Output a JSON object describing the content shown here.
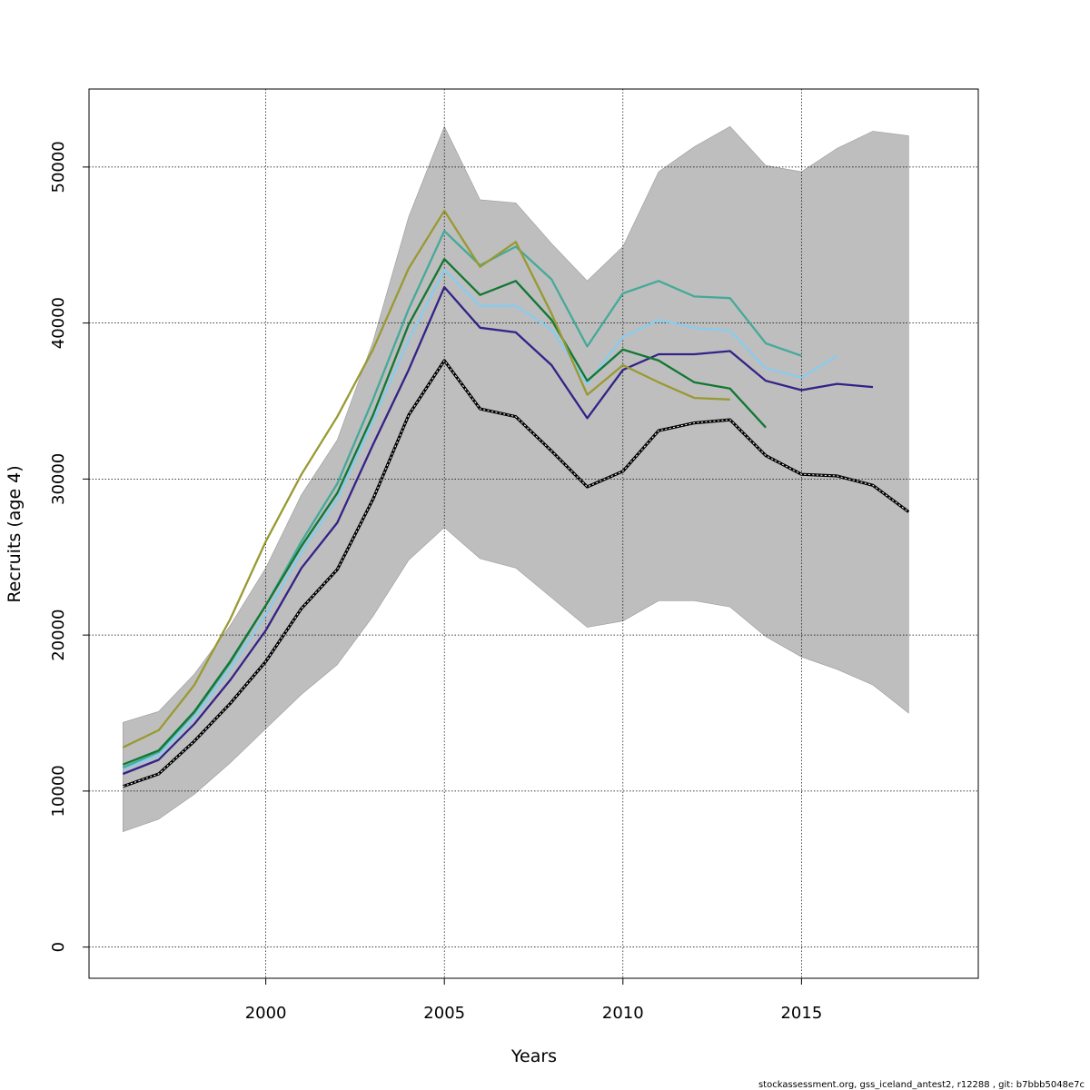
{
  "chart_data": {
    "type": "line",
    "title": "",
    "xlabel": "Years",
    "ylabel": "Recruits (age 4)",
    "footer": "stockassessment.org, gss_iceland_antest2, r12288 , git: b7bbb5048e7c",
    "xlim": [
      1995.05,
      2019.95
    ],
    "ylim": [
      -2000,
      55000
    ],
    "xticks": [
      2000,
      2005,
      2010,
      2015
    ],
    "yticks": [
      0,
      10000,
      20000,
      30000,
      40000,
      50000
    ],
    "grid": true,
    "band": {
      "x": [
        1996,
        1997,
        1998,
        1999,
        2000,
        2001,
        2002,
        2003,
        2004,
        2005,
        2006,
        2007,
        2008,
        2009,
        2010,
        2011,
        2012,
        2013,
        2014,
        2015,
        2016,
        2017,
        2018
      ],
      "lower": [
        7400,
        8200,
        9800,
        11800,
        14000,
        16200,
        18100,
        21200,
        24800,
        26900,
        24900,
        24300,
        22400,
        20500,
        20900,
        22200,
        22200,
        21800,
        19900,
        18600,
        17800,
        16800,
        15000
      ],
      "upper": [
        14400,
        15100,
        17500,
        20600,
        24300,
        29000,
        32500,
        38800,
        46800,
        52600,
        47900,
        47700,
        45100,
        42700,
        44900,
        49700,
        51300,
        52600,
        50100,
        49700,
        51200,
        52300,
        52000
      ],
      "color": "#bebebe"
    },
    "series": [
      {
        "color": "#ffffff",
        "dashed": true,
        "x": [
          1996,
          1997,
          1998,
          1999,
          2000,
          2001,
          2002,
          2003,
          2004,
          2005,
          2006,
          2007,
          2008,
          2009,
          2010,
          2011,
          2012,
          2013,
          2014,
          2015,
          2016,
          2017,
          2018
        ],
        "values": [
          10300,
          11100,
          13200,
          15600,
          18300,
          21700,
          24200,
          28700,
          34100,
          37600,
          34500,
          34000,
          31800,
          29500,
          30500,
          33100,
          33600,
          33800,
          31500,
          30300,
          30200,
          29600,
          27900
        ]
      },
      {
        "color": "#332288",
        "x": [
          1996,
          1997,
          1998,
          1999,
          2000,
          2001,
          2002,
          2003,
          2004,
          2005,
          2006,
          2007,
          2008,
          2009,
          2010,
          2011,
          2012,
          2013,
          2014,
          2015,
          2016,
          2017
        ],
        "values": [
          11100,
          12000,
          14300,
          17100,
          20300,
          24300,
          27200,
          32200,
          37000,
          42300,
          39700,
          39400,
          37300,
          33900,
          37000,
          38000,
          38000,
          38200,
          36300,
          35700,
          36100,
          35900
        ]
      },
      {
        "color": "#88ccee",
        "x": [
          1996,
          1997,
          1998,
          1999,
          2000,
          2001,
          2002,
          2003,
          2004,
          2005,
          2006,
          2007,
          2008,
          2009,
          2010,
          2011,
          2012,
          2013,
          2014,
          2015,
          2016
        ],
        "values": [
          11400,
          12300,
          14700,
          17800,
          21300,
          25300,
          28700,
          33700,
          38900,
          43400,
          41100,
          41100,
          39600,
          36100,
          39100,
          40200,
          39700,
          39500,
          37100,
          36500,
          37900
        ]
      },
      {
        "color": "#44aa99",
        "x": [
          1996,
          1997,
          1998,
          1999,
          2000,
          2001,
          2002,
          2003,
          2004,
          2005,
          2006,
          2007,
          2008,
          2009,
          2010,
          2011,
          2012,
          2013,
          2014,
          2015
        ],
        "values": [
          11500,
          12500,
          15000,
          18200,
          21900,
          26000,
          29700,
          35100,
          40900,
          45900,
          43700,
          44900,
          42800,
          38500,
          41900,
          42700,
          41700,
          41600,
          38700,
          37900
        ]
      },
      {
        "color": "#117733",
        "x": [
          1996,
          1997,
          1998,
          1999,
          2000,
          2001,
          2002,
          2003,
          2004,
          2005,
          2006,
          2007,
          2008,
          2009,
          2010,
          2011,
          2012,
          2013,
          2014
        ],
        "values": [
          11700,
          12600,
          15100,
          18300,
          21900,
          25700,
          29100,
          34100,
          39900,
          44100,
          41800,
          42700,
          40200,
          36300,
          38300,
          37600,
          36200,
          35800,
          33300
        ]
      },
      {
        "color": "#999933",
        "x": [
          1996,
          1997,
          1998,
          1999,
          2000,
          2001,
          2002,
          2003,
          2004,
          2005,
          2006,
          2007,
          2008,
          2009,
          2010,
          2011,
          2012,
          2013
        ],
        "values": [
          12800,
          13900,
          16800,
          21000,
          26000,
          30300,
          34000,
          38300,
          43500,
          47200,
          43600,
          45200,
          40600,
          35400,
          37300,
          36200,
          35200,
          35100
        ]
      }
    ]
  }
}
